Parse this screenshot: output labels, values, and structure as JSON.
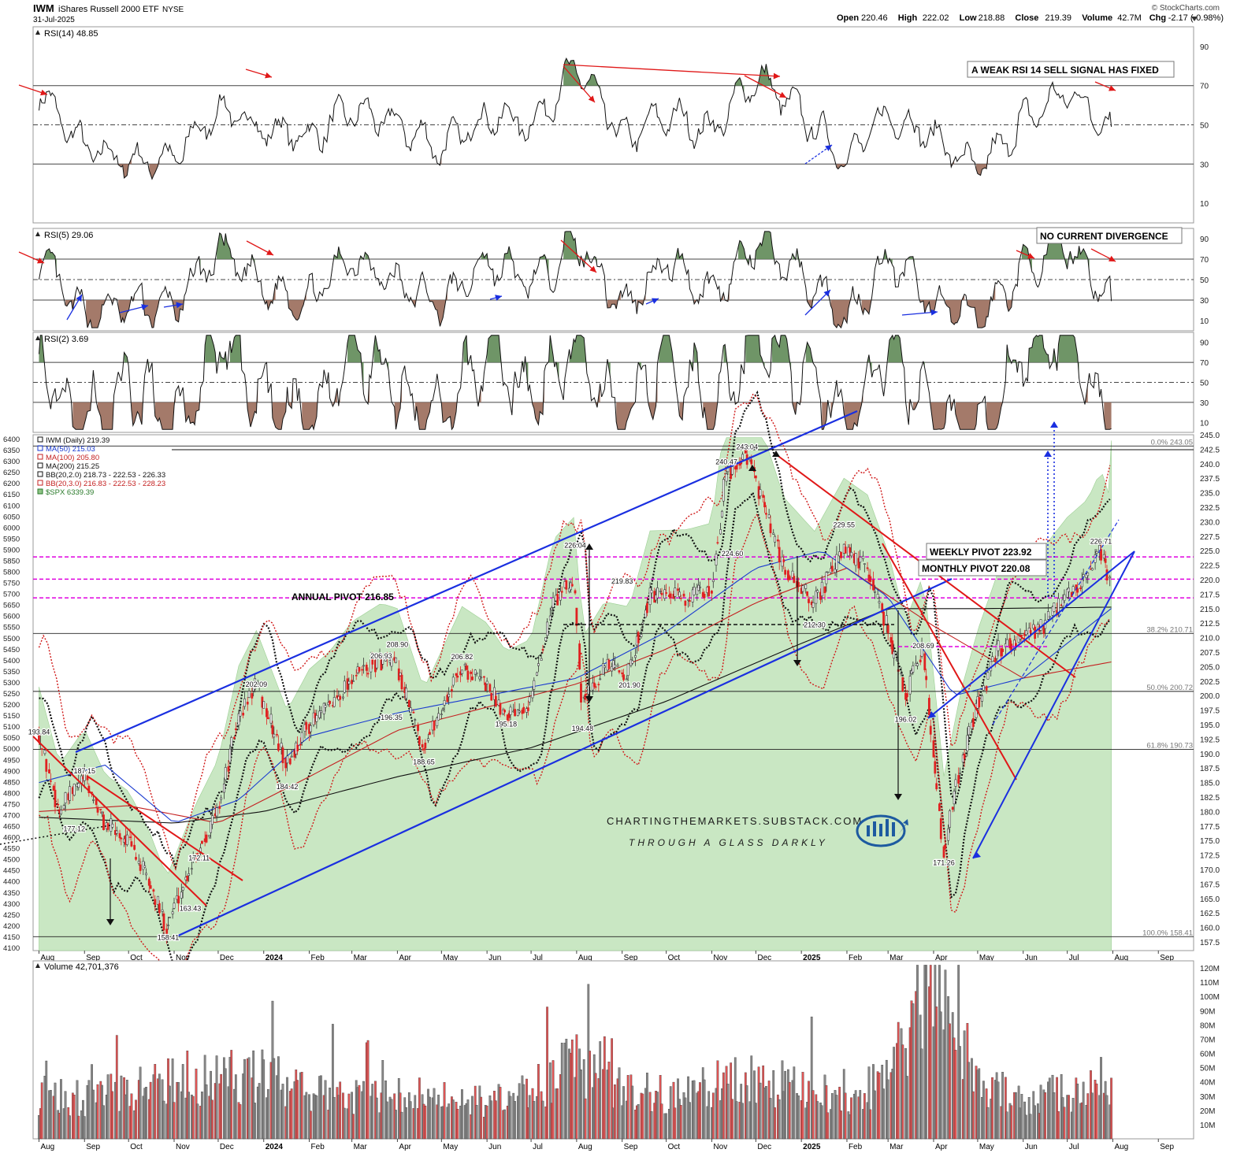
{
  "header": {
    "symbol": "IWM",
    "name": "iShares Russell 2000 ETF",
    "exchange": "NYSE",
    "date": "31-Jul-2025",
    "brand": "© StockCharts.com",
    "ohlc": {
      "open_label": "Open",
      "open": "220.46",
      "high_label": "High",
      "high": "222.02",
      "low_label": "Low",
      "low": "218.88",
      "close_label": "Close",
      "close": "219.39",
      "volume_label": "Volume",
      "volume": "42.7M",
      "chg_label": "Chg",
      "chg": "-2.17 (-0.98%)"
    }
  },
  "colors": {
    "up": "#333333",
    "down": "#e02020",
    "spx_fill": "#bfe3b8",
    "blue_line": "#1a2fe0",
    "red_line": "#e01818",
    "pivot": "#e000e0",
    "ob_fill": "#5f8a57",
    "os_fill": "#9a6b5a"
  },
  "annotations": {
    "rsi14_note": "A WEAK RSI 14 SELL SIGNAL HAS FIXED",
    "rsi5_note": "NO CURRENT DIVERGENCE",
    "annual_pivot": "ANNUAL PIVOT 216.85",
    "weekly_pivot": "WEEKLY PIVOT 223.92",
    "monthly_pivot": "MONTHLY PIVOT 220.08",
    "watermark_1": "CHARTINGTHEMARKETS.SUBSTACK.COM",
    "watermark_2": "THROUGH A GLASS DARKLY"
  },
  "chart_data": [
    {
      "type": "line",
      "panel": "RSI(14)",
      "legend": "RSI(14) 48.85",
      "ylim": [
        0,
        100
      ],
      "ticks": [
        10,
        30,
        50,
        70,
        90
      ],
      "levels": [
        30,
        50,
        70
      ],
      "x": [
        "2023-08-01",
        "2023-09-01",
        "2023-10-01",
        "2023-11-01",
        "2023-12-01",
        "2024-01-01",
        "2024-02-01",
        "2024-03-01",
        "2024-04-01",
        "2024-05-01",
        "2024-06-01",
        "2024-07-01",
        "2024-08-01",
        "2024-09-01",
        "2024-10-01",
        "2024-11-01",
        "2024-12-01",
        "2025-01-01",
        "2025-02-01",
        "2025-03-01",
        "2025-04-01",
        "2025-05-01",
        "2025-06-01",
        "2025-07-01",
        "2025-07-31"
      ],
      "values": [
        66,
        38,
        31,
        33,
        58,
        48,
        44,
        57,
        50,
        38,
        55,
        50,
        80,
        42,
        55,
        47,
        75,
        55,
        33,
        56,
        44,
        26,
        52,
        67,
        49
      ]
    },
    {
      "type": "line",
      "panel": "RSI(5)",
      "legend": "RSI(5) 29.06",
      "ylim": [
        0,
        100
      ],
      "ticks": [
        10,
        30,
        50,
        70,
        90
      ],
      "levels": [
        30,
        50,
        70
      ],
      "x": [
        "2023-08-01",
        "2023-09-01",
        "2023-10-01",
        "2023-11-01",
        "2023-12-01",
        "2024-01-01",
        "2024-02-01",
        "2024-03-01",
        "2024-04-01",
        "2024-05-01",
        "2024-06-01",
        "2024-07-01",
        "2024-08-01",
        "2024-09-01",
        "2024-10-01",
        "2024-11-01",
        "2024-12-01",
        "2025-01-01",
        "2025-02-01",
        "2025-03-01",
        "2025-04-01",
        "2025-05-01",
        "2025-06-01",
        "2025-07-01",
        "2025-07-31"
      ],
      "values": [
        70,
        12,
        25,
        22,
        80,
        40,
        30,
        75,
        45,
        25,
        70,
        45,
        90,
        22,
        70,
        35,
        85,
        55,
        12,
        70,
        25,
        10,
        60,
        85,
        29
      ]
    },
    {
      "type": "line",
      "panel": "RSI(2)",
      "legend": "RSI(2) 3.69",
      "ylim": [
        0,
        100
      ],
      "ticks": [
        10,
        30,
        50,
        70,
        90
      ],
      "levels": [
        30,
        50,
        70
      ],
      "x": [
        "2023-08-01",
        "2023-09-01",
        "2023-10-01",
        "2023-11-01",
        "2023-12-01",
        "2024-01-01",
        "2024-02-01",
        "2024-03-01",
        "2024-04-01",
        "2024-05-01",
        "2024-06-01",
        "2024-07-01",
        "2024-08-01",
        "2024-09-01",
        "2024-10-01",
        "2024-11-01",
        "2024-12-01",
        "2025-01-01",
        "2025-02-01",
        "2025-03-01",
        "2025-04-01",
        "2025-05-01",
        "2025-06-01",
        "2025-07-01",
        "2025-07-31"
      ],
      "values": [
        80,
        5,
        40,
        8,
        95,
        30,
        15,
        90,
        40,
        5,
        85,
        30,
        98,
        6,
        90,
        20,
        95,
        60,
        4,
        90,
        10,
        5,
        80,
        95,
        3.69
      ]
    },
    {
      "type": "line",
      "panel": "IWM (Daily)",
      "legend": [
        "IWM (Daily) 219.39",
        "MA(50) 215.03",
        "MA(100) 205.80",
        "MA(200) 215.25",
        "BB(20,2.0) 218.73 - 222.53 - 226.33",
        "BB(20,3.0) 216.83 - 222.53 - 228.23",
        "$SPX 6339.39"
      ],
      "ylim": [
        156,
        245
      ],
      "right_ticks": [
        "157.5",
        "160.0",
        "162.5",
        "165.0",
        "167.5",
        "170.0",
        "172.5",
        "175.0",
        "177.5",
        "180.0",
        "182.5",
        "185.0",
        "187.5",
        "190.0",
        "192.5",
        "195.0",
        "197.5",
        "200.0",
        "202.5",
        "205.0",
        "207.5",
        "210.0",
        "212.5",
        "215.0",
        "217.5",
        "220.0",
        "222.5",
        "225.0",
        "227.5",
        "230.0",
        "232.5",
        "235.0",
        "237.5",
        "240.0",
        "242.5",
        "245.0"
      ],
      "left_ticks": [
        "4100",
        "4150",
        "4200",
        "4250",
        "4300",
        "4350",
        "4400",
        "4450",
        "4500",
        "4550",
        "4600",
        "4650",
        "4700",
        "4750",
        "4800",
        "4850",
        "4900",
        "4950",
        "5000",
        "5050",
        "5100",
        "5150",
        "5200",
        "5250",
        "5300",
        "5350",
        "5400",
        "5450",
        "5500",
        "5550",
        "5600",
        "5650",
        "5700",
        "5750",
        "5800",
        "5850",
        "5900",
        "5950",
        "6000",
        "6050",
        "6100",
        "6150",
        "6200",
        "6250",
        "6300",
        "6350",
        "6400"
      ],
      "x_labels": [
        "Aug",
        "Sep",
        "Oct",
        "Nov",
        "Dec",
        "2024",
        "Feb",
        "Mar",
        "Apr",
        "May",
        "Jun",
        "Jul",
        "Aug",
        "Sep",
        "Oct",
        "Nov",
        "Dec",
        "2025",
        "Feb",
        "Mar",
        "Apr",
        "May",
        "Jun",
        "Jul",
        "Aug",
        "Sep"
      ],
      "x_dates": [
        "2023-08-01",
        "2023-09-01",
        "2023-10-01",
        "2023-11-01",
        "2023-12-01",
        "2024-01-01",
        "2024-02-01",
        "2024-03-01",
        "2024-04-01",
        "2024-05-01",
        "2024-06-01",
        "2024-07-01",
        "2024-08-01",
        "2024-09-01",
        "2024-10-01",
        "2024-11-01",
        "2024-12-01",
        "2025-01-01",
        "2025-02-01",
        "2025-03-01",
        "2025-04-01",
        "2025-05-01",
        "2025-06-01",
        "2025-07-01",
        "2025-08-01",
        "2025-09-01"
      ],
      "fib_levels": [
        {
          "label": "0.0% 243.05",
          "value": 243.05
        },
        {
          "label": "38.2% 210.71",
          "value": 210.71
        },
        {
          "label": "50.0% 200.72",
          "value": 200.72
        },
        {
          "label": "61.8% 190.73",
          "value": 190.73
        },
        {
          "label": "100.0% 158.41",
          "value": 158.41
        }
      ],
      "pivots": [
        {
          "name": "WEEKLY PIVOT",
          "value": 223.92
        },
        {
          "name": "MONTHLY PIVOT",
          "value": 220.08
        },
        {
          "name": "ANNUAL PIVOT",
          "value": 216.85
        }
      ],
      "price_labels": [
        {
          "text": "193.84",
          "date": "2023-08-01",
          "value": 193.84
        },
        {
          "text": "187.15",
          "date": "2023-09-01",
          "value": 187.15
        },
        {
          "text": "177.12",
          "date": "2023-08-25",
          "value": 177.12
        },
        {
          "text": "172.11",
          "date": "2023-11-18",
          "value": 172.11
        },
        {
          "text": "163.43",
          "date": "2023-11-12",
          "value": 163.43
        },
        {
          "text": "158.41",
          "date": "2023-10-28",
          "value": 158.41
        },
        {
          "text": "202.09",
          "date": "2023-12-27",
          "value": 202.09
        },
        {
          "text": "184.42",
          "date": "2024-01-17",
          "value": 184.42
        },
        {
          "text": "206.93",
          "date": "2024-03-21",
          "value": 206.93
        },
        {
          "text": "208.90",
          "date": "2024-04-01",
          "value": 208.9
        },
        {
          "text": "196.35",
          "date": "2024-03-28",
          "value": 196.35
        },
        {
          "text": "188.65",
          "date": "2024-04-19",
          "value": 188.65
        },
        {
          "text": "206.82",
          "date": "2024-05-15",
          "value": 206.82
        },
        {
          "text": "195.18",
          "date": "2024-06-14",
          "value": 195.18
        },
        {
          "text": "226.04",
          "date": "2024-07-31",
          "value": 226.04
        },
        {
          "text": "194.48",
          "date": "2024-08-05",
          "value": 194.48
        },
        {
          "text": "219.83",
          "date": "2024-09-01",
          "value": 219.83
        },
        {
          "text": "201.90",
          "date": "2024-09-06",
          "value": 201.9
        },
        {
          "text": "240.47",
          "date": "2024-11-11",
          "value": 240.47
        },
        {
          "text": "243.04",
          "date": "2024-11-25",
          "value": 243.04
        },
        {
          "text": "224.60",
          "date": "2024-11-15",
          "value": 224.6
        },
        {
          "text": "229.55",
          "date": "2025-01-30",
          "value": 229.55
        },
        {
          "text": "212.30",
          "date": "2025-01-10",
          "value": 212.3
        },
        {
          "text": "208.69",
          "date": "2025-03-25",
          "value": 208.69
        },
        {
          "text": "196.02",
          "date": "2025-03-13",
          "value": 196.02
        },
        {
          "text": "171.26",
          "date": "2025-04-08",
          "value": 171.26
        },
        {
          "text": "226.71",
          "date": "2025-07-24",
          "value": 226.71
        }
      ],
      "close": {
        "x": [
          "2023-08-01",
          "2023-08-15",
          "2023-09-01",
          "2023-09-15",
          "2023-10-01",
          "2023-10-15",
          "2023-10-27",
          "2023-11-15",
          "2023-12-01",
          "2023-12-15",
          "2023-12-27",
          "2024-01-17",
          "2024-02-01",
          "2024-02-15",
          "2024-03-01",
          "2024-03-21",
          "2024-04-01",
          "2024-04-19",
          "2024-05-15",
          "2024-06-01",
          "2024-06-14",
          "2024-07-01",
          "2024-07-16",
          "2024-07-31",
          "2024-08-05",
          "2024-08-20",
          "2024-09-06",
          "2024-09-20",
          "2024-10-15",
          "2024-11-01",
          "2024-11-11",
          "2024-11-25",
          "2024-12-10",
          "2024-12-20",
          "2025-01-10",
          "2025-01-30",
          "2025-02-15",
          "2025-03-01",
          "2025-03-13",
          "2025-03-25",
          "2025-04-08",
          "2025-04-20",
          "2025-05-01",
          "2025-05-15",
          "2025-06-01",
          "2025-06-15",
          "2025-07-01",
          "2025-07-15",
          "2025-07-24",
          "2025-07-31"
        ],
        "values": [
          193.5,
          180,
          186,
          178,
          175,
          168,
          160,
          172,
          180,
          196,
          202,
          188,
          195,
          198,
          203,
          206,
          205,
          191,
          205,
          202,
          197,
          199,
          216,
          220,
          199,
          205,
          204,
          217,
          217,
          218,
          238,
          242,
          230,
          222,
          216,
          225,
          222,
          212,
          200,
          208,
          173,
          188,
          198,
          208,
          210,
          212,
          217,
          220,
          225,
          219.39
        ]
      },
      "ma50": {
        "x": [
          "2023-08-01",
          "2023-09-15",
          "2023-11-01",
          "2023-12-15",
          "2024-02-01",
          "2024-04-01",
          "2024-06-01",
          "2024-08-01",
          "2024-10-01",
          "2024-12-01",
          "2025-01-15",
          "2025-03-01",
          "2025-04-15",
          "2025-06-01",
          "2025-07-31"
        ],
        "values": [
          185,
          188,
          178,
          182,
          193,
          197,
          200,
          203,
          211,
          222,
          225,
          217,
          200,
          203,
          215.03
        ]
      },
      "ma100": {
        "x": [
          "2023-08-01",
          "2023-10-01",
          "2023-12-01",
          "2024-02-01",
          "2024-04-01",
          "2024-06-01",
          "2024-08-01",
          "2024-10-01",
          "2024-12-01",
          "2025-02-01",
          "2025-04-01",
          "2025-06-01",
          "2025-07-31"
        ],
        "values": [
          180,
          181,
          178,
          186,
          194,
          198,
          202,
          208,
          216,
          222,
          212,
          203,
          205.8
        ]
      },
      "ma200": {
        "x": [
          "2023-08-01",
          "2023-11-01",
          "2024-01-01",
          "2024-04-01",
          "2024-07-01",
          "2024-10-01",
          "2025-01-01",
          "2025-03-01",
          "2025-05-01",
          "2025-07-31"
        ],
        "values": [
          179,
          178,
          180,
          186,
          191,
          199,
          209,
          215,
          215,
          215.25
        ]
      }
    },
    {
      "type": "bar",
      "panel": "Volume",
      "legend": "Volume 42,701,376",
      "ylim": [
        0,
        125
      ],
      "ticks": [
        "10M",
        "20M",
        "30M",
        "40M",
        "50M",
        "60M",
        "70M",
        "80M",
        "90M",
        "100M",
        "110M",
        "120M"
      ],
      "latest_value": 42701376,
      "x": [
        "2023-08-01",
        "2023-09-01",
        "2023-10-01",
        "2023-11-01",
        "2023-12-01",
        "2024-01-01",
        "2024-02-01",
        "2024-03-01",
        "2024-04-01",
        "2024-05-01",
        "2024-06-01",
        "2024-07-01",
        "2024-08-01",
        "2024-09-01",
        "2024-10-01",
        "2024-11-01",
        "2024-12-01",
        "2025-01-01",
        "2025-02-01",
        "2025-03-01",
        "2025-04-01",
        "2025-05-01",
        "2025-06-01",
        "2025-07-01",
        "2025-07-31"
      ],
      "values": [
        30,
        28,
        35,
        40,
        42,
        45,
        32,
        30,
        34,
        28,
        26,
        32,
        55,
        35,
        30,
        38,
        42,
        35,
        30,
        40,
        120,
        38,
        30,
        32,
        42.7
      ]
    }
  ]
}
